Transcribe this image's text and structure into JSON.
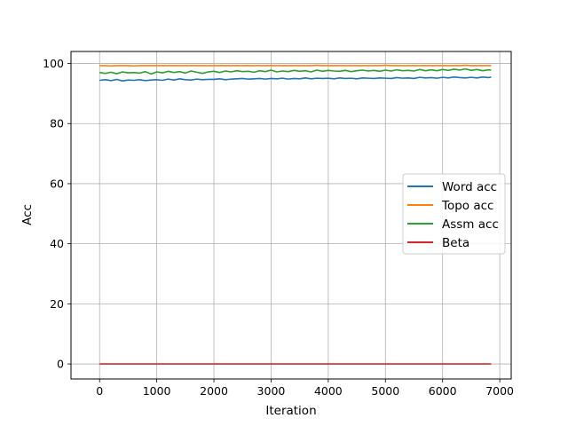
{
  "chart_data": {
    "type": "line",
    "title": "",
    "xlabel": "Iteration",
    "ylabel": "Acc",
    "xlim": [
      -500,
      7200
    ],
    "ylim": [
      -5,
      104
    ],
    "xticks": [
      0,
      1000,
      2000,
      3000,
      4000,
      5000,
      6000,
      7000
    ],
    "yticks": [
      0,
      20,
      40,
      60,
      80,
      100
    ],
    "grid": true,
    "legend_position": "center-right",
    "x": [
      0,
      100,
      200,
      300,
      400,
      500,
      600,
      700,
      800,
      900,
      1000,
      1100,
      1200,
      1300,
      1400,
      1500,
      1600,
      1700,
      1800,
      1900,
      2000,
      2100,
      2200,
      2300,
      2400,
      2500,
      2600,
      2700,
      2800,
      2900,
      3000,
      3100,
      3200,
      3300,
      3400,
      3500,
      3600,
      3700,
      3800,
      3900,
      4000,
      4100,
      4200,
      4300,
      4400,
      4500,
      4600,
      4700,
      4800,
      4900,
      5000,
      5100,
      5200,
      5300,
      5400,
      5500,
      5600,
      5700,
      5800,
      5900,
      6000,
      6100,
      6200,
      6300,
      6400,
      6500,
      6600,
      6700,
      6800,
      6850
    ],
    "series": [
      {
        "name": "Word acc",
        "color": "#1f77b4",
        "values": [
          94.4,
          94.6,
          94.3,
          94.7,
          94.2,
          94.5,
          94.4,
          94.6,
          94.3,
          94.5,
          94.6,
          94.4,
          94.8,
          94.5,
          94.9,
          94.6,
          94.5,
          94.8,
          94.6,
          94.7,
          94.7,
          94.9,
          94.6,
          94.8,
          94.9,
          95.0,
          94.8,
          94.9,
          95.0,
          94.8,
          95.0,
          94.9,
          95.1,
          94.8,
          95.0,
          94.9,
          95.2,
          94.9,
          95.1,
          95.0,
          95.1,
          94.9,
          95.2,
          95.0,
          95.1,
          94.9,
          95.2,
          95.1,
          95.0,
          95.2,
          95.1,
          95.0,
          95.3,
          95.1,
          95.2,
          95.0,
          95.4,
          95.2,
          95.3,
          95.1,
          95.4,
          95.2,
          95.5,
          95.3,
          95.2,
          95.4,
          95.2,
          95.5,
          95.3,
          95.5
        ]
      },
      {
        "name": "Topo acc",
        "color": "#ff7f0e",
        "values": [
          99.3,
          99.3,
          99.2,
          99.3,
          99.3,
          99.3,
          99.2,
          99.3,
          99.3,
          99.3,
          99.3,
          99.3,
          99.3,
          99.3,
          99.3,
          99.3,
          99.3,
          99.3,
          99.3,
          99.3,
          99.3,
          99.3,
          99.3,
          99.3,
          99.3,
          99.3,
          99.3,
          99.3,
          99.3,
          99.3,
          99.3,
          99.3,
          99.3,
          99.3,
          99.3,
          99.3,
          99.3,
          99.3,
          99.4,
          99.3,
          99.3,
          99.3,
          99.3,
          99.3,
          99.3,
          99.3,
          99.3,
          99.3,
          99.3,
          99.3,
          99.4,
          99.3,
          99.3,
          99.3,
          99.3,
          99.3,
          99.3,
          99.3,
          99.3,
          99.3,
          99.3,
          99.3,
          99.3,
          99.3,
          99.4,
          99.3,
          99.3,
          99.3,
          99.3,
          99.3
        ]
      },
      {
        "name": "Assm acc",
        "color": "#2ca02c",
        "values": [
          97.0,
          96.7,
          97.1,
          96.6,
          97.2,
          96.9,
          97.0,
          96.8,
          97.3,
          96.5,
          97.2,
          96.9,
          97.4,
          97.0,
          97.3,
          96.8,
          97.5,
          97.1,
          96.7,
          97.2,
          97.4,
          97.0,
          97.5,
          97.2,
          97.6,
          97.3,
          97.4,
          97.1,
          97.6,
          97.3,
          97.8,
          97.2,
          97.5,
          97.3,
          97.7,
          97.4,
          97.6,
          97.2,
          97.8,
          97.4,
          97.7,
          97.5,
          97.4,
          97.7,
          97.3,
          97.6,
          97.8,
          97.5,
          97.7,
          97.4,
          97.8,
          97.5,
          97.9,
          97.6,
          97.7,
          97.5,
          98.0,
          97.6,
          97.9,
          97.6,
          98.0,
          97.7,
          98.1,
          97.8,
          98.2,
          97.7,
          98.0,
          97.6,
          97.9,
          97.8
        ]
      },
      {
        "name": "Beta",
        "color": "#d62728",
        "values": [
          0,
          0,
          0,
          0,
          0,
          0,
          0,
          0,
          0,
          0,
          0,
          0,
          0,
          0,
          0,
          0,
          0,
          0,
          0,
          0,
          0,
          0,
          0,
          0,
          0,
          0,
          0,
          0,
          0,
          0,
          0,
          0,
          0,
          0,
          0,
          0,
          0,
          0,
          0,
          0,
          0,
          0,
          0,
          0,
          0,
          0,
          0,
          0,
          0,
          0,
          0,
          0,
          0,
          0,
          0,
          0,
          0,
          0,
          0,
          0,
          0,
          0,
          0,
          0,
          0,
          0,
          0,
          0,
          0,
          0
        ]
      }
    ]
  }
}
